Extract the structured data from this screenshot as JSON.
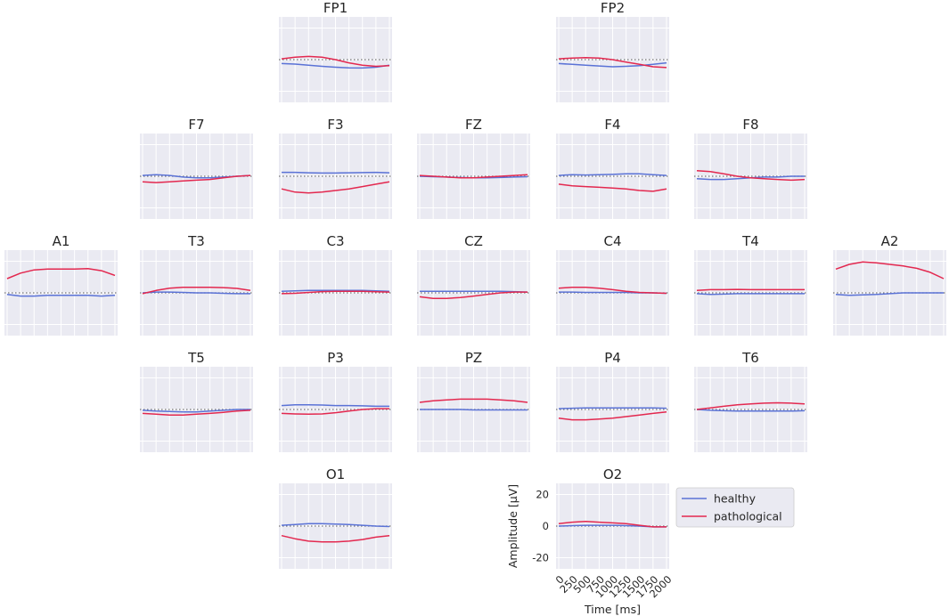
{
  "chart_data": {
    "type": "line",
    "x": [
      0,
      250,
      500,
      750,
      1000,
      1250,
      1500,
      1750,
      2000
    ],
    "xlabel": "Time [ms]",
    "ylabel": "Amplitude [µV]",
    "xlim": [
      -50,
      2050
    ],
    "ylim": [
      -27,
      27
    ],
    "yticks": [
      -20,
      0,
      20
    ],
    "xticks": [
      0,
      250,
      500,
      750,
      1000,
      1250,
      1500,
      1750,
      2000
    ],
    "grid": true,
    "legend": {
      "placement": "right of O2 panel",
      "entries": [
        "healthy",
        "pathological"
      ]
    },
    "colors": {
      "healthy": "#5a72d6",
      "pathological": "#e3284f",
      "background": "#eaeaf2",
      "grid": "#ffffff",
      "zero_line": "#777777"
    },
    "panels": [
      {
        "name": "FP1",
        "series": [
          {
            "name": "healthy",
            "values": [
              -2.5,
              -2.8,
              -3.5,
              -4.2,
              -4.8,
              -5.2,
              -5.3,
              -4.8,
              -3.5
            ]
          },
          {
            "name": "pathological",
            "values": [
              0.5,
              1.5,
              2.0,
              1.5,
              0,
              -2.0,
              -3.5,
              -4.2,
              -3.8
            ]
          }
        ]
      },
      {
        "name": "FP2",
        "series": [
          {
            "name": "healthy",
            "values": [
              -2.5,
              -3.0,
              -3.5,
              -4.0,
              -4.5,
              -4.2,
              -3.8,
              -3.0,
              -2.0
            ]
          },
          {
            "name": "pathological",
            "values": [
              0.5,
              1.0,
              1.3,
              1.0,
              0,
              -1.5,
              -3.0,
              -4.5,
              -5.0
            ]
          }
        ]
      },
      {
        "name": "F7",
        "series": [
          {
            "name": "healthy",
            "values": [
              0.5,
              1.0,
              0.5,
              -0.5,
              -1.0,
              -1.0,
              -0.5,
              0,
              0.5
            ]
          },
          {
            "name": "pathological",
            "values": [
              -3.5,
              -4.0,
              -3.5,
              -3.0,
              -2.5,
              -2.0,
              -1.0,
              0,
              0.5
            ]
          }
        ]
      },
      {
        "name": "F3",
        "series": [
          {
            "name": "healthy",
            "values": [
              2.5,
              2.5,
              2.2,
              2.0,
              2.0,
              2.2,
              2.3,
              2.5,
              2.2
            ]
          },
          {
            "name": "pathological",
            "values": [
              -8.0,
              -10.0,
              -10.5,
              -10.0,
              -9.0,
              -8.0,
              -6.5,
              -5.0,
              -3.5
            ]
          }
        ]
      },
      {
        "name": "FZ",
        "series": [
          {
            "name": "healthy",
            "values": [
              0,
              -0.3,
              -0.5,
              -0.8,
              -1.0,
              -1.0,
              -0.8,
              -0.5,
              -0.3
            ]
          },
          {
            "name": "pathological",
            "values": [
              0.5,
              0,
              -0.5,
              -1.0,
              -1.0,
              -0.5,
              0,
              0.5,
              1.0
            ]
          }
        ]
      },
      {
        "name": "F4",
        "series": [
          {
            "name": "healthy",
            "values": [
              0.5,
              1.0,
              0.8,
              1.0,
              1.2,
              1.5,
              1.5,
              1.0,
              0.5
            ]
          },
          {
            "name": "pathological",
            "values": [
              -5.0,
              -6.0,
              -6.5,
              -7.0,
              -7.5,
              -8.0,
              -9.0,
              -9.5,
              -8.0
            ]
          }
        ]
      },
      {
        "name": "F8",
        "series": [
          {
            "name": "healthy",
            "values": [
              -1.5,
              -2.0,
              -2.0,
              -1.5,
              -1.0,
              -0.5,
              -0.5,
              0,
              0
            ]
          },
          {
            "name": "pathological",
            "values": [
              3.5,
              3.0,
              1.5,
              0,
              -1.0,
              -1.5,
              -2.0,
              -2.5,
              -2.0
            ]
          }
        ]
      },
      {
        "name": "A1",
        "series": [
          {
            "name": "healthy",
            "values": [
              -1.0,
              -2.0,
              -2.0,
              -1.5,
              -1.5,
              -1.5,
              -1.5,
              -2.0,
              -1.5
            ]
          },
          {
            "name": "pathological",
            "values": [
              9.0,
              12.5,
              14.5,
              15.0,
              15.0,
              15.0,
              15.3,
              14.0,
              11.0
            ]
          }
        ]
      },
      {
        "name": "T3",
        "series": [
          {
            "name": "healthy",
            "values": [
              0,
              0.5,
              0.5,
              0.3,
              0,
              0,
              -0.3,
              -0.5,
              -0.5
            ]
          },
          {
            "name": "pathological",
            "values": [
              -0.5,
              1.5,
              3.0,
              3.5,
              3.5,
              3.5,
              3.3,
              2.8,
              1.5
            ]
          }
        ]
      },
      {
        "name": "C3",
        "series": [
          {
            "name": "healthy",
            "values": [
              1.0,
              1.3,
              1.5,
              1.5,
              1.5,
              1.5,
              1.5,
              1.3,
              1.0
            ]
          },
          {
            "name": "pathological",
            "values": [
              -0.5,
              -0.3,
              0.3,
              0.8,
              1.0,
              1.0,
              1.0,
              0.7,
              0.5
            ]
          }
        ]
      },
      {
        "name": "CZ",
        "series": [
          {
            "name": "healthy",
            "values": [
              1.0,
              1.0,
              1.0,
              1.0,
              1.0,
              1.0,
              1.0,
              0.8,
              0.5
            ]
          },
          {
            "name": "pathological",
            "values": [
              -2.5,
              -3.5,
              -3.5,
              -3.0,
              -2.0,
              -1.0,
              0,
              0.5,
              0.5
            ]
          }
        ]
      },
      {
        "name": "C4",
        "series": [
          {
            "name": "healthy",
            "values": [
              0.5,
              0.5,
              0.3,
              0.3,
              0.3,
              0.3,
              0,
              0,
              -0.3
            ]
          },
          {
            "name": "pathological",
            "values": [
              3.0,
              3.5,
              3.5,
              3.0,
              2.0,
              1.0,
              0.3,
              0,
              -0.3
            ]
          }
        ]
      },
      {
        "name": "T4",
        "series": [
          {
            "name": "healthy",
            "values": [
              -0.5,
              -1.0,
              -0.8,
              -0.5,
              -0.5,
              -0.5,
              -0.5,
              -0.5,
              -0.5
            ]
          },
          {
            "name": "pathological",
            "values": [
              1.5,
              2.0,
              2.0,
              2.2,
              2.0,
              2.0,
              2.0,
              2.0,
              2.0
            ]
          }
        ]
      },
      {
        "name": "A2",
        "series": [
          {
            "name": "healthy",
            "values": [
              -1.0,
              -1.5,
              -1.3,
              -1.0,
              -0.5,
              0,
              0,
              0,
              0
            ]
          },
          {
            "name": "pathological",
            "values": [
              15.0,
              18.0,
              19.5,
              19.0,
              18.0,
              17.0,
              15.5,
              13.0,
              9.0
            ]
          }
        ]
      },
      {
        "name": "T5",
        "series": [
          {
            "name": "healthy",
            "values": [
              -0.5,
              -1.0,
              -1.3,
              -1.5,
              -1.5,
              -1.0,
              -0.5,
              0,
              0
            ]
          },
          {
            "name": "pathological",
            "values": [
              -2.5,
              -3.0,
              -3.5,
              -3.5,
              -3.0,
              -2.5,
              -1.8,
              -1.0,
              -0.5
            ]
          }
        ]
      },
      {
        "name": "P3",
        "series": [
          {
            "name": "healthy",
            "values": [
              2.5,
              3.0,
              3.0,
              2.8,
              2.5,
              2.5,
              2.3,
              2.0,
              2.0
            ]
          },
          {
            "name": "pathological",
            "values": [
              -2.5,
              -2.8,
              -3.0,
              -2.8,
              -2.0,
              -1.0,
              0,
              0.5,
              0.5
            ]
          }
        ]
      },
      {
        "name": "PZ",
        "series": [
          {
            "name": "healthy",
            "values": [
              0,
              0,
              0,
              0,
              -0.3,
              -0.3,
              -0.3,
              -0.3,
              -0.3
            ]
          },
          {
            "name": "pathological",
            "values": [
              4.5,
              5.5,
              6.0,
              6.5,
              6.5,
              6.5,
              6.0,
              5.5,
              4.5
            ]
          }
        ]
      },
      {
        "name": "P4",
        "series": [
          {
            "name": "healthy",
            "values": [
              0.5,
              0.8,
              1.0,
              1.0,
              1.0,
              1.0,
              1.0,
              1.0,
              0.8
            ]
          },
          {
            "name": "pathological",
            "values": [
              -5.5,
              -6.5,
              -6.5,
              -6.0,
              -5.5,
              -4.5,
              -3.5,
              -2.5,
              -1.5
            ]
          }
        ]
      },
      {
        "name": "T6",
        "series": [
          {
            "name": "healthy",
            "values": [
              0,
              -0.5,
              -0.8,
              -1.0,
              -1.0,
              -1.0,
              -1.0,
              -1.0,
              -0.8
            ]
          },
          {
            "name": "pathological",
            "values": [
              0,
              1.0,
              2.0,
              3.0,
              3.5,
              4.0,
              4.2,
              4.0,
              3.5
            ]
          }
        ]
      },
      {
        "name": "O1",
        "series": [
          {
            "name": "healthy",
            "values": [
              0.5,
              1.0,
              1.5,
              1.5,
              1.3,
              1.0,
              0.5,
              0,
              -0.3
            ]
          },
          {
            "name": "pathological",
            "values": [
              -6.0,
              -8.0,
              -9.5,
              -10.0,
              -10.0,
              -9.5,
              -8.5,
              -7.0,
              -6.0
            ]
          }
        ]
      },
      {
        "name": "O2",
        "series": [
          {
            "name": "healthy",
            "values": [
              0,
              0.3,
              0.5,
              0.5,
              0.5,
              0.3,
              0,
              -0.5,
              -0.5
            ]
          },
          {
            "name": "pathological",
            "values": [
              1.5,
              2.5,
              3.0,
              2.5,
              2.0,
              1.5,
              0.5,
              -0.5,
              -0.5
            ]
          }
        ]
      }
    ]
  }
}
